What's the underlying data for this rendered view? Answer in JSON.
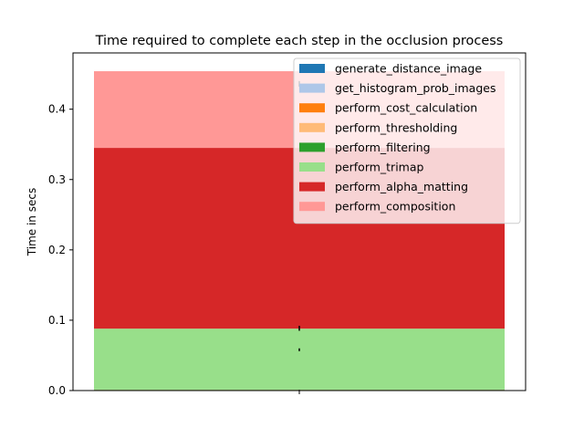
{
  "chart_data": {
    "type": "bar",
    "stacked": true,
    "title": "Time required to complete each step in the occlusion process",
    "xlabel": "",
    "ylabel": "Time in secs",
    "ylim": [
      0,
      0.48
    ],
    "yticks": [
      "0.0",
      "0.1",
      "0.2",
      "0.3",
      "0.4"
    ],
    "grid": false,
    "legend_position": "top-right",
    "categories": [
      ""
    ],
    "series": [
      {
        "name": "generate_distance_image",
        "values": [
          0.0003
        ],
        "color": "#1f77b4"
      },
      {
        "name": "get_histogram_prob_images",
        "values": [
          0.0002
        ],
        "color": "#aec7e8"
      },
      {
        "name": "perform_cost_calculation",
        "values": [
          0.0003
        ],
        "color": "#ff7f0e"
      },
      {
        "name": "perform_thresholding",
        "values": [
          0.0002
        ],
        "color": "#ffbb78"
      },
      {
        "name": "perform_filtering",
        "values": [
          0.0005
        ],
        "color": "#2ca02c"
      },
      {
        "name": "perform_trimap",
        "values": [
          0.0865
        ],
        "color": "#98df8a"
      },
      {
        "name": "perform_alpha_matting",
        "values": [
          0.257
        ],
        "color": "#d62728"
      },
      {
        "name": "perform_composition",
        "values": [
          0.109
        ],
        "color": "#ff9896"
      }
    ],
    "error_bars": [
      {
        "center": 0.0,
        "low": 0.0,
        "high": 0.001
      },
      {
        "center": 0.058,
        "low": 0.056,
        "high": 0.06
      },
      {
        "center": 0.088,
        "low": 0.085,
        "high": 0.092
      },
      {
        "center": 0.436,
        "low": 0.432,
        "high": 0.44
      }
    ]
  }
}
